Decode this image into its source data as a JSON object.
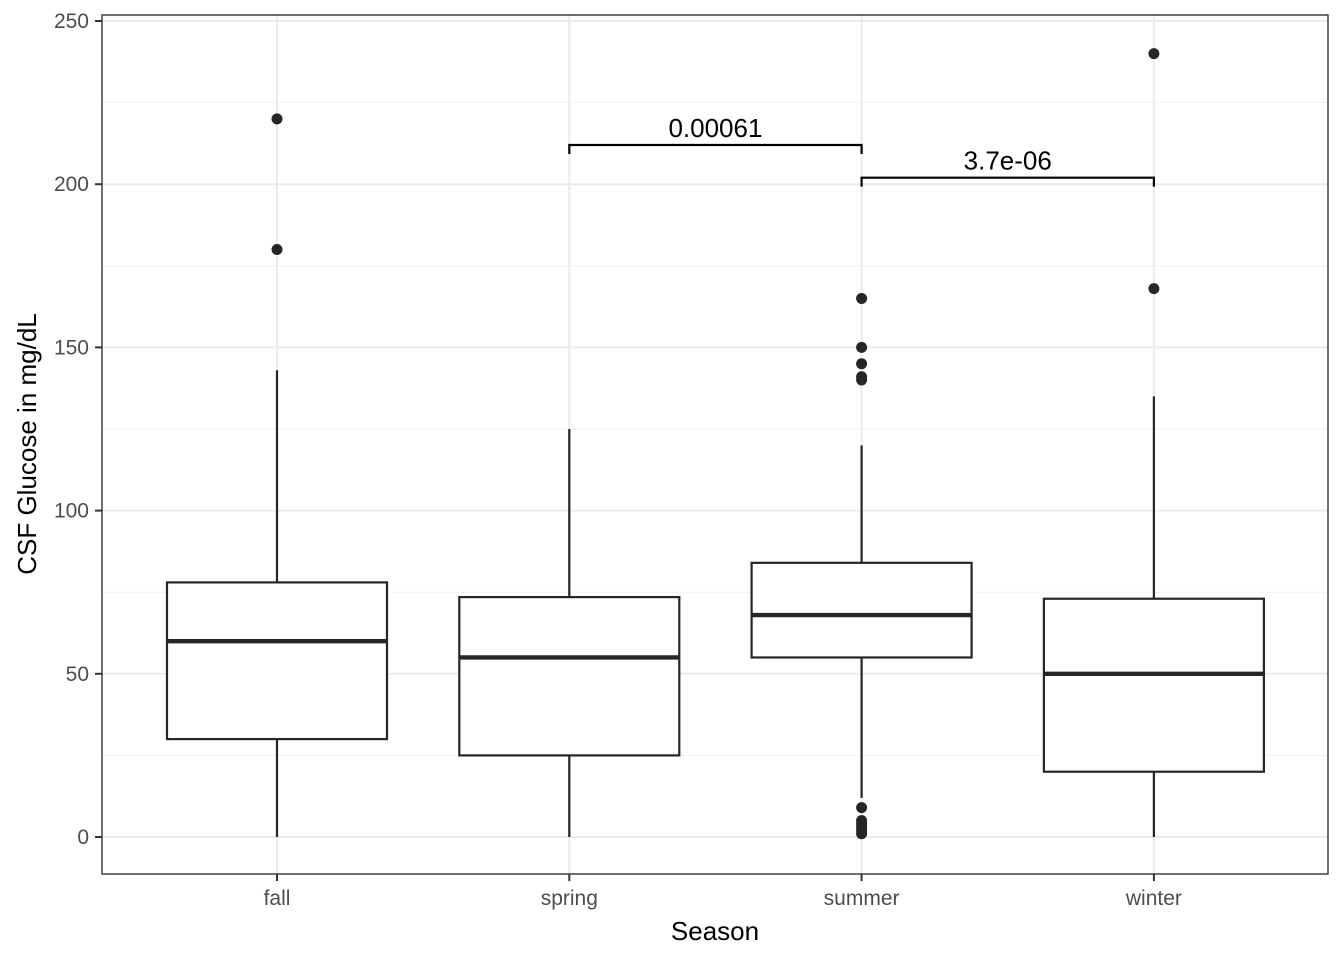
{
  "chart_data": {
    "type": "boxplot",
    "title": "",
    "xlabel": "Season",
    "ylabel": "CSF Glucose in mg/dL",
    "ylim": [
      -11,
      252
    ],
    "yticks": [
      0,
      50,
      100,
      150,
      200,
      250
    ],
    "ytick_labels": [
      "0",
      "50",
      "100",
      "150",
      "200",
      "250"
    ],
    "y_minor_ticks": [
      25,
      75,
      125,
      175,
      225
    ],
    "grid": true,
    "categories": [
      "fall",
      "spring",
      "summer",
      "winter"
    ],
    "boxes": [
      {
        "category": "fall",
        "whisker_low": 0,
        "q1": 30,
        "median": 60,
        "q3": 78,
        "whisker_high": 143,
        "outliers": [
          180,
          220
        ]
      },
      {
        "category": "spring",
        "whisker_low": 0,
        "q1": 25,
        "median": 55,
        "q3": 73.5,
        "whisker_high": 125,
        "outliers": []
      },
      {
        "category": "summer",
        "whisker_low": 12,
        "q1": 55,
        "median": 68,
        "q3": 84,
        "whisker_high": 120,
        "outliers": [
          1,
          2,
          3,
          4,
          5,
          9,
          140,
          141,
          145,
          150,
          165
        ]
      },
      {
        "category": "winter",
        "whisker_low": 0,
        "q1": 20,
        "median": 50,
        "q3": 73,
        "whisker_high": 135,
        "outliers": [
          168,
          240
        ]
      }
    ],
    "comparisons": [
      {
        "from": "spring",
        "to": "summer",
        "y": 212,
        "label": "0.00061"
      },
      {
        "from": "summer",
        "to": "winter",
        "y": 202,
        "label": "3.7e-06"
      }
    ],
    "colors": {
      "box": "#262626",
      "point": "#262626",
      "grid_major": "#ebebeb",
      "grid_minor": "#f2f2f2",
      "panel_border": "#333333",
      "tick_text": "#4d4d4d"
    }
  }
}
